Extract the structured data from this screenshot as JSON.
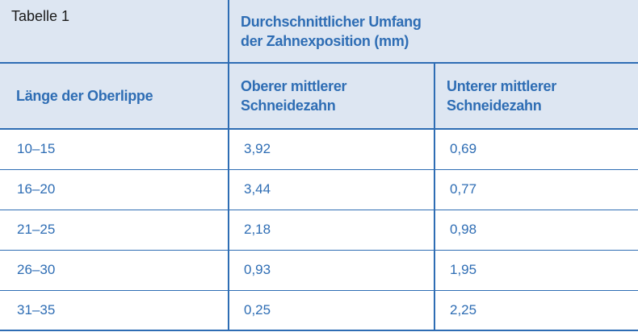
{
  "table": {
    "caption": "Tabelle 1",
    "group_header_line1": "Durchschnittlicher Umfang",
    "group_header_line2": "der Zahnexposition (mm)",
    "headers": [
      {
        "line1": "Länge der Oberlippe",
        "line2": ""
      },
      {
        "line1": "Oberer mittlerer",
        "line2": "Schneidezahn"
      },
      {
        "line1": "Unterer mittlerer",
        "line2": "Schneidezahn"
      }
    ],
    "rows": [
      [
        "10–15",
        "3,92",
        "0,69"
      ],
      [
        "16–20",
        "3,44",
        "0,77"
      ],
      [
        "21–25",
        "2,18",
        "0,98"
      ],
      [
        "26–30",
        "0,93",
        "1,95"
      ],
      [
        "31–35",
        "0,25",
        "2,25"
      ]
    ]
  },
  "colors": {
    "accent": "#2e6db4",
    "header_background": "#dde6f2"
  }
}
